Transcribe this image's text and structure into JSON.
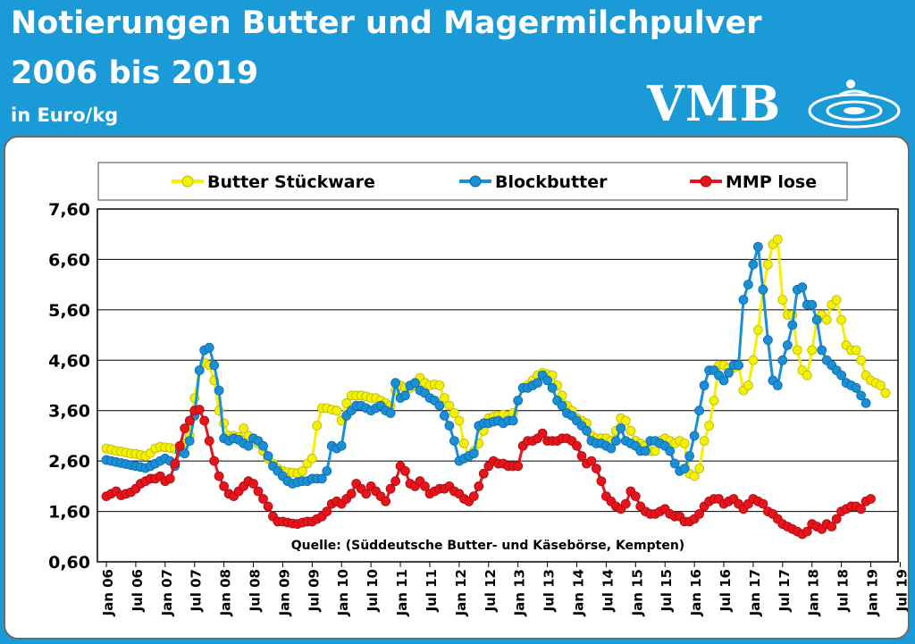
{
  "header": {
    "title_line1": "Notierungen Butter und Magermilchpulver",
    "title_line2": "2006 bis 2019",
    "unit": "in Euro/kg",
    "logo": "VMB"
  },
  "colors": {
    "background": "#1a9ad6",
    "butter": "#f5f000",
    "blockbutter": "#1a8fd6",
    "mmp": "#e8141b"
  },
  "chart_data": {
    "type": "line",
    "title": "Notierungen Butter und Magermilchpulver 2006 bis 2019",
    "ylabel": "Euro/kg",
    "ylim": [
      0.6,
      7.6
    ],
    "yticks": [
      "7,60",
      "6,60",
      "5,60",
      "4,60",
      "3,60",
      "2,60",
      "1,60",
      "0,60"
    ],
    "grid": true,
    "legend_position": "top",
    "source": "Quelle: (Süddeutsche Butter- und Käsebörse, Kempten)",
    "x_tick_labels": [
      "Jan 06",
      "Jul 06",
      "Jan 07",
      "Jul 07",
      "Jan 08",
      "Jul 08",
      "Jan 09",
      "Jul 09",
      "Jan 10",
      "Jul 10",
      "Jan 11",
      "Jul 11",
      "Jan 12",
      "Jul 12",
      "Jan 13",
      "Jul 13",
      "Jan 14",
      "Jul 14",
      "Jan 15",
      "Jul 15",
      "Jan 16",
      "Jul 16",
      "Jan 17",
      "Jul 17",
      "Jan 18",
      "Jul 18",
      "Jan 19",
      "Jul 19"
    ],
    "x_start": "2006-01",
    "x_step": "1 month",
    "series": [
      {
        "name": "Butter Stückware",
        "color": "#f5f000",
        "values": [
          2.85,
          2.83,
          2.8,
          2.79,
          2.77,
          2.75,
          2.74,
          2.72,
          2.7,
          2.76,
          2.85,
          2.88,
          2.87,
          2.86,
          2.84,
          2.78,
          2.95,
          3.1,
          3.85,
          4.4,
          4.55,
          4.5,
          4.2,
          3.6,
          3.35,
          3.1,
          3.1,
          3.08,
          3.25,
          3.1,
          3.05,
          2.95,
          2.8,
          2.65,
          2.55,
          2.45,
          2.4,
          2.38,
          2.37,
          2.36,
          2.4,
          2.55,
          2.65,
          3.3,
          3.65,
          3.65,
          3.62,
          3.6,
          3.4,
          3.75,
          3.9,
          3.9,
          3.9,
          3.88,
          3.85,
          3.85,
          3.8,
          3.75,
          3.7,
          4.0,
          4.1,
          4.05,
          4.05,
          4.1,
          4.25,
          4.15,
          4.1,
          4.12,
          4.1,
          3.85,
          3.7,
          3.55,
          3.4,
          2.95,
          2.7,
          2.8,
          2.95,
          3.2,
          3.45,
          3.48,
          3.5,
          3.52,
          3.5,
          3.55,
          3.8,
          4.05,
          4.1,
          4.2,
          4.3,
          4.35,
          4.32,
          4.3,
          4.1,
          3.9,
          3.7,
          3.6,
          3.45,
          3.4,
          3.35,
          3.1,
          3.05,
          3.05,
          3.05,
          3.0,
          3.2,
          3.45,
          3.4,
          3.2,
          3.0,
          2.95,
          2.9,
          2.8,
          2.8,
          3.0,
          3.05,
          3.0,
          2.95,
          3.0,
          2.95,
          2.35,
          2.3,
          2.45,
          3.0,
          3.3,
          3.8,
          4.5,
          4.5,
          4.45,
          4.45,
          4.5,
          4.0,
          4.1,
          4.6,
          5.2,
          6.0,
          6.5,
          6.9,
          7.0,
          5.8,
          5.5,
          5.5,
          4.8,
          4.4,
          4.3,
          4.8,
          5.4,
          5.5,
          5.4,
          5.7,
          5.8,
          5.4,
          4.9,
          4.8,
          4.8,
          4.6,
          4.3,
          4.2,
          4.15,
          4.1,
          3.95
        ]
      },
      {
        "name": "Blockbutter",
        "color": "#1a8fd6",
        "values": [
          2.62,
          2.6,
          2.58,
          2.56,
          2.54,
          2.52,
          2.5,
          2.48,
          2.46,
          2.5,
          2.55,
          2.6,
          2.65,
          2.6,
          2.5,
          2.8,
          2.75,
          3.0,
          3.5,
          4.4,
          4.8,
          4.85,
          4.5,
          4.0,
          3.05,
          3.0,
          3.05,
          3.02,
          2.95,
          2.9,
          3.05,
          3.0,
          2.9,
          2.7,
          2.5,
          2.4,
          2.3,
          2.2,
          2.15,
          2.18,
          2.2,
          2.2,
          2.25,
          2.25,
          2.25,
          2.4,
          2.9,
          2.85,
          2.9,
          3.5,
          3.6,
          3.7,
          3.7,
          3.65,
          3.6,
          3.65,
          3.7,
          3.6,
          3.55,
          4.15,
          3.85,
          3.9,
          4.1,
          4.15,
          4.0,
          3.95,
          3.85,
          3.8,
          3.7,
          3.5,
          3.3,
          3.0,
          2.6,
          2.65,
          2.7,
          2.75,
          3.3,
          3.35,
          3.35,
          3.38,
          3.4,
          3.35,
          3.4,
          3.4,
          3.8,
          4.05,
          4.05,
          4.1,
          4.15,
          4.3,
          4.2,
          4.05,
          3.8,
          3.7,
          3.55,
          3.5,
          3.4,
          3.3,
          3.2,
          3.0,
          2.95,
          2.95,
          2.9,
          2.85,
          3.0,
          3.25,
          3.0,
          2.95,
          2.9,
          2.8,
          2.8,
          3.0,
          3.0,
          2.95,
          2.9,
          2.8,
          2.55,
          2.4,
          2.45,
          2.7,
          3.1,
          3.6,
          4.1,
          4.4,
          4.4,
          4.3,
          4.2,
          4.35,
          4.5,
          4.5,
          5.8,
          6.1,
          6.5,
          6.85,
          6.0,
          5.0,
          4.2,
          4.1,
          4.6,
          4.9,
          5.3,
          6.0,
          6.05,
          5.7,
          5.7,
          5.4,
          4.8,
          4.6,
          4.5,
          4.4,
          4.3,
          4.15,
          4.1,
          4.05,
          3.9,
          3.75
        ]
      },
      {
        "name": "MMP lose",
        "color": "#e8141b",
        "values": [
          1.9,
          1.95,
          2.0,
          1.92,
          1.95,
          1.98,
          2.05,
          2.15,
          2.2,
          2.25,
          2.25,
          2.3,
          2.2,
          2.25,
          2.55,
          2.9,
          3.25,
          3.4,
          3.6,
          3.62,
          3.4,
          3.0,
          2.6,
          2.3,
          2.1,
          1.95,
          1.9,
          2.0,
          2.1,
          2.2,
          2.15,
          2.0,
          1.85,
          1.7,
          1.5,
          1.4,
          1.4,
          1.38,
          1.36,
          1.35,
          1.38,
          1.4,
          1.4,
          1.45,
          1.5,
          1.6,
          1.75,
          1.8,
          1.75,
          1.85,
          1.95,
          2.15,
          2.05,
          1.95,
          2.1,
          2.0,
          1.9,
          1.8,
          2.05,
          2.2,
          2.5,
          2.4,
          2.15,
          2.1,
          2.2,
          2.1,
          1.95,
          2.0,
          2.05,
          2.05,
          2.1,
          2.0,
          1.95,
          1.85,
          1.8,
          1.9,
          2.1,
          2.35,
          2.5,
          2.6,
          2.55,
          2.55,
          2.5,
          2.5,
          2.5,
          2.9,
          3.0,
          3.0,
          3.05,
          3.15,
          3.0,
          3.0,
          3.0,
          3.05,
          3.05,
          3.0,
          2.9,
          2.7,
          2.55,
          2.6,
          2.45,
          2.2,
          1.9,
          1.8,
          1.7,
          1.65,
          1.75,
          2.0,
          1.9,
          1.7,
          1.6,
          1.55,
          1.55,
          1.6,
          1.65,
          1.55,
          1.5,
          1.5,
          1.4,
          1.4,
          1.45,
          1.55,
          1.7,
          1.8,
          1.85,
          1.85,
          1.75,
          1.8,
          1.85,
          1.75,
          1.65,
          1.75,
          1.85,
          1.8,
          1.75,
          1.6,
          1.55,
          1.45,
          1.35,
          1.3,
          1.25,
          1.2,
          1.15,
          1.2,
          1.35,
          1.3,
          1.25,
          1.35,
          1.3,
          1.45,
          1.6,
          1.65,
          1.7,
          1.7,
          1.65,
          1.8,
          1.85
        ]
      }
    ]
  }
}
